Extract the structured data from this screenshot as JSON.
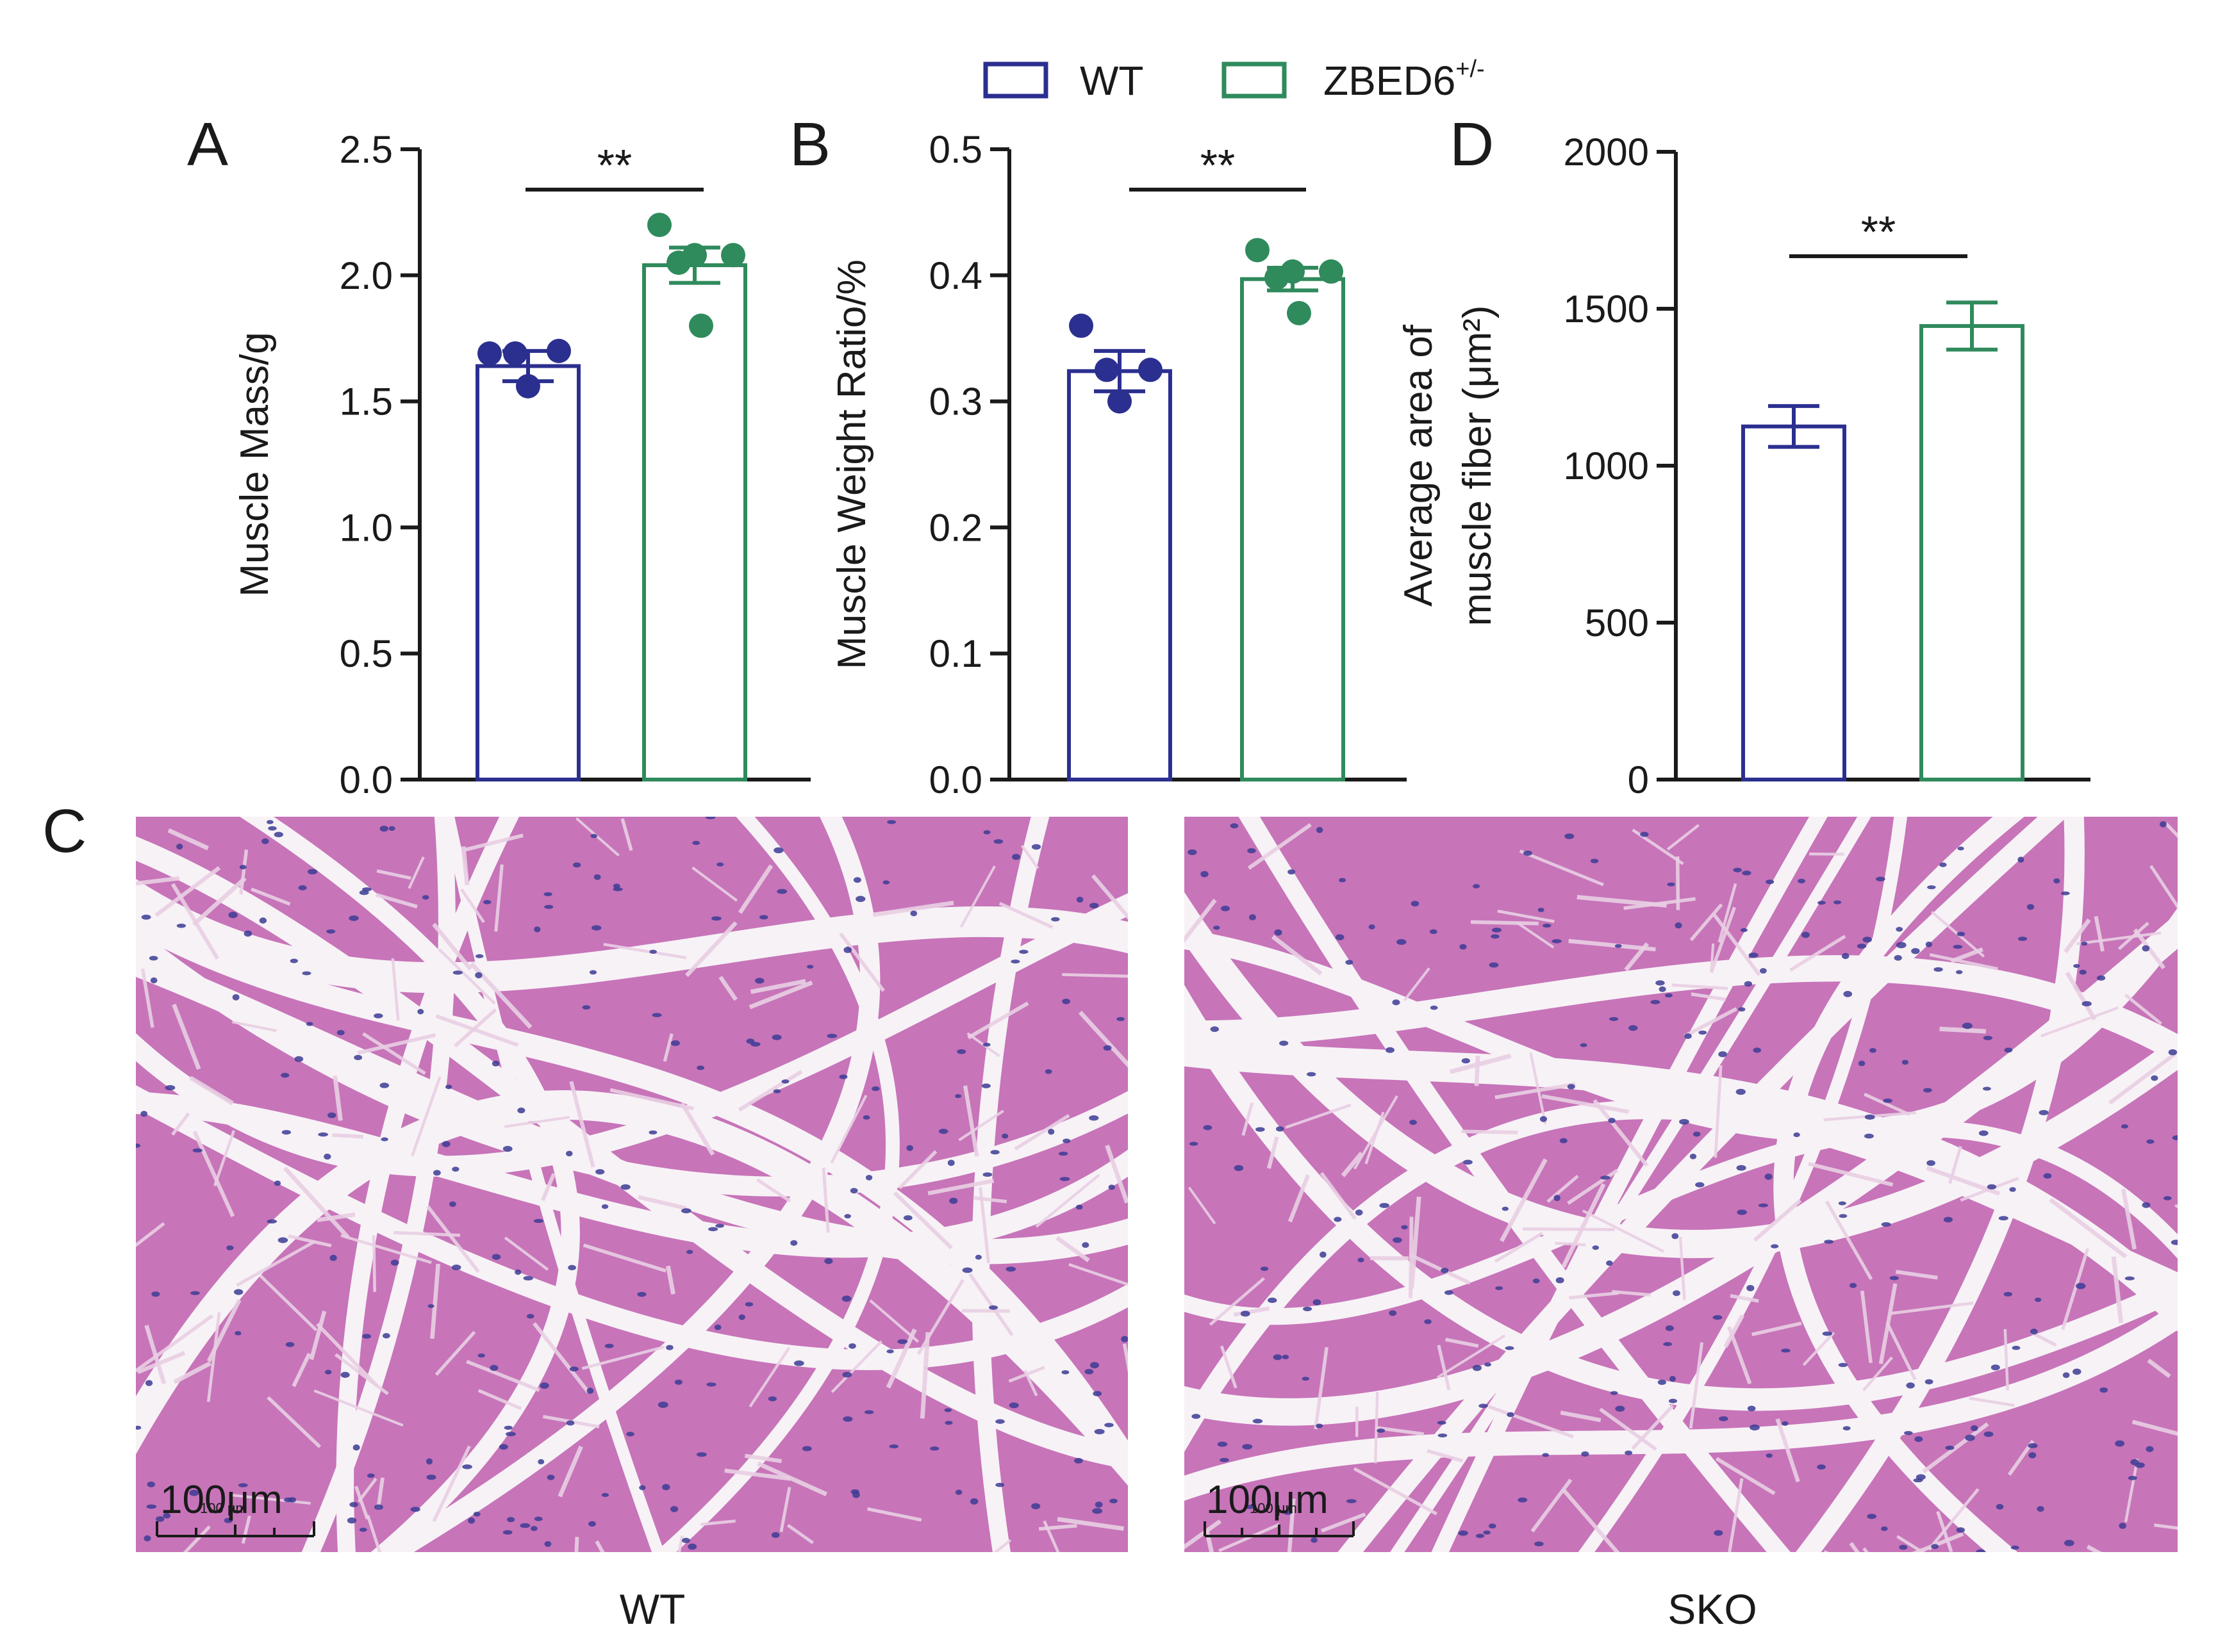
{
  "colors": {
    "wt": "#2b2f8f",
    "zbed6": "#2f8a5c",
    "axis": "#1a1a1a",
    "tissue": "#c774b9",
    "tissue_dark": "#b660aa",
    "gap": "#f7f2f6",
    "nucleus": "#3c3c94"
  },
  "legend": {
    "items": [
      {
        "name": "WT",
        "sup": "",
        "color_key": "wt"
      },
      {
        "name": "ZBED6",
        "sup": "+/-",
        "color_key": "zbed6"
      }
    ]
  },
  "chart_data": [
    {
      "panel": "A",
      "type": "bar",
      "ylabel": "Muscle Mass/g",
      "ylabel_lines": [
        "Muscle Mass/g"
      ],
      "ylim": [
        0,
        2.5
      ],
      "yticks": [
        "0.0",
        "0.5",
        "1.0",
        "1.5",
        "2.0",
        "2.5"
      ],
      "categories": [
        "WT",
        "ZBED6+/-"
      ],
      "series": [
        {
          "name": "WT",
          "value": 1.64,
          "sem": 0.06,
          "points": [
            1.69,
            1.69,
            1.7,
            1.56
          ]
        },
        {
          "name": "ZBED6+/-",
          "value": 2.04,
          "sem": 0.07,
          "points": [
            2.2,
            2.08,
            2.08,
            2.05,
            1.8
          ]
        }
      ],
      "significance": "**"
    },
    {
      "panel": "B",
      "type": "bar",
      "ylabel": "Muscle Weight Ratio/%",
      "ylabel_lines": [
        "Muscle Weight Ratio/%"
      ],
      "ylim": [
        0,
        0.5
      ],
      "yticks": [
        "0.0",
        "0.1",
        "0.2",
        "0.3",
        "0.4",
        "0.5"
      ],
      "categories": [
        "WT",
        "ZBED6+/-"
      ],
      "series": [
        {
          "name": "WT",
          "value": 0.324,
          "sem": 0.016,
          "points": [
            0.36,
            0.325,
            0.325,
            0.3
          ]
        },
        {
          "name": "ZBED6+/-",
          "value": 0.397,
          "sem": 0.009,
          "points": [
            0.42,
            0.403,
            0.403,
            0.398,
            0.37
          ]
        }
      ],
      "significance": "**"
    },
    {
      "panel": "D",
      "type": "bar",
      "ylabel": "Average area of muscle fiber (μm²)",
      "ylabel_lines": [
        "Average area of",
        "muscle fiber (μm²)"
      ],
      "ylim": [
        0,
        2000
      ],
      "yticks": [
        "0",
        "500",
        "1000",
        "1500",
        "2000"
      ],
      "categories": [
        "WT",
        "ZBED6+/-"
      ],
      "series": [
        {
          "name": "WT",
          "value": 1125,
          "sem": 65,
          "points": []
        },
        {
          "name": "ZBED6+/-",
          "value": 1445,
          "sem": 75,
          "points": []
        }
      ],
      "significance": "**"
    }
  ],
  "micrographs": {
    "panel": "C",
    "images": [
      {
        "caption": "WT",
        "scale_label": "100μm",
        "scale_small": "100 μm"
      },
      {
        "caption": "SKO",
        "scale_label": "100μm",
        "scale_small": "100 μm"
      }
    ]
  }
}
